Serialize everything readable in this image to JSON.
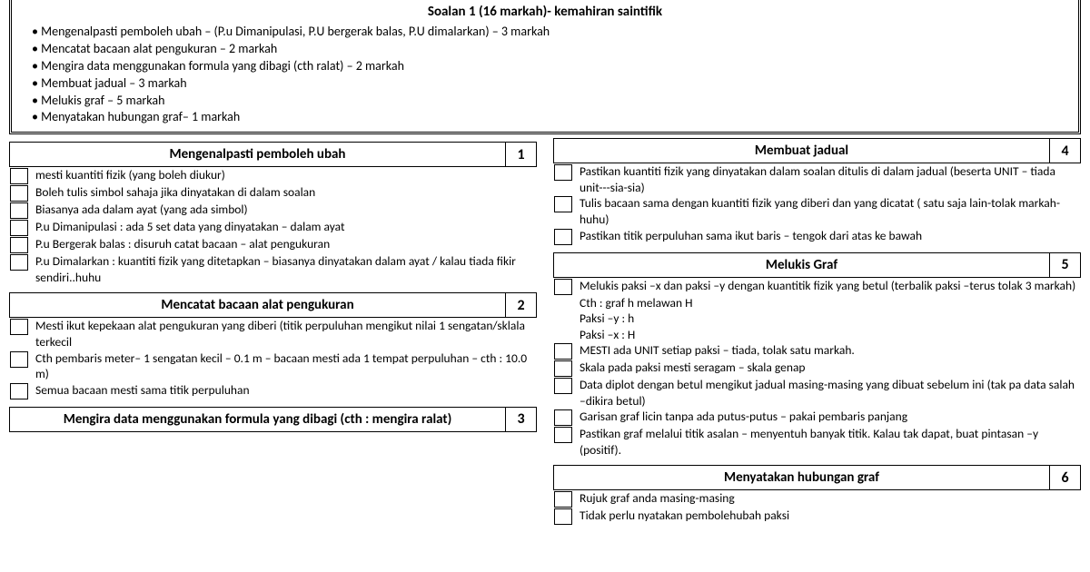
{
  "header": {
    "title": "Soalan 1 (16 markah)- kemahiran saintifik",
    "bullets": [
      "Mengenalpasti pemboleh ubah – (P.u Dimanipulasi, P.U bergerak balas, P.U dimalarkan) – 3 markah",
      " Mencatat bacaan alat pengukuran – 2 markah",
      "Mengira data menggunakan formula yang dibagi (cth ralat) – 2 markah",
      "Membuat jadual – 3 markah",
      "Melukis graf – 5 markah",
      "Menyatakan hubungan graf– 1 markah"
    ]
  },
  "sections": {
    "s1": {
      "title": "Mengenalpasti pemboleh ubah",
      "num": "1",
      "rows": [
        {
          "chk": true,
          "t": "mesti kuantiti fizik (yang boleh diukur)"
        },
        {
          "chk": true,
          "t": "Boleh tulis simbol sahaja jika dinyatakan di dalam soalan"
        },
        {
          "chk": true,
          "t": "Biasanya ada dalam ayat (yang ada simbol)"
        },
        {
          "chk": true,
          "t": "P.u Dimanipulasi : ada 5 set data yang dinyatakan – dalam ayat"
        },
        {
          "chk": true,
          "t": "P.u Bergerak balas : disuruh catat bacaan – alat pengukuran"
        },
        {
          "chk": true,
          "t": "P.u Dimalarkan : kuantiti fizik yang ditetapkan – biasanya dinyatakan dalam ayat / kalau tiada fikir sendiri..huhu"
        }
      ]
    },
    "s2": {
      "title": "Mencatat bacaan alat pengukuran",
      "num": "2",
      "rows": [
        {
          "chk": true,
          "t": "Mesti ikut kepekaan alat pengukuran yang diberi (titik perpuluhan mengikut nilai 1 sengatan/sklala terkecil"
        },
        {
          "chk": true,
          "t": "Cth pembaris meter– 1 sengatan kecil – 0.1 m – bacaan mesti ada 1 tempat perpuluhan – cth : 10.0 m)"
        },
        {
          "chk": true,
          "t": "Semua bacaan mesti sama titik perpuluhan"
        }
      ]
    },
    "s3": {
      "title": "Mengira data menggunakan formula yang dibagi (cth : mengira ralat)",
      "num": "3",
      "rows": []
    },
    "s4": {
      "title": "Membuat jadual",
      "num": "4",
      "rows": [
        {
          "chk": true,
          "t": "Pastikan kuantiti fizik yang dinyatakan dalam soalan ditulis di dalam jadual (beserta UNIT – tiada unit---sia-sia)"
        },
        {
          "chk": true,
          "t": "Tulis bacaan sama dengan kuantiti fizik yang diberi dan yang dicatat ( satu saja lain-tolak markah-huhu)"
        },
        {
          "chk": true,
          "t": "Pastikan titik perpuluhan sama ikut baris – tengok dari atas ke bawah"
        }
      ]
    },
    "s5": {
      "title": "Melukis Graf",
      "num": "5",
      "rows": [
        {
          "chk": true,
          "t": "Melukis paksi –x dan paksi –y dengan kuantitik fizik yang betul (terbalik paksi –terus tolak 3 markah)"
        },
        {
          "chk": false,
          "t": " Cth : graf h melawan H"
        },
        {
          "chk": false,
          "t": "Paksi –y : h"
        },
        {
          "chk": false,
          "t": "Paksi –x : H"
        },
        {
          "chk": true,
          "t": "MESTI ada UNIT setiap paksi – tiada, tolak satu markah."
        },
        {
          "chk": true,
          "t": "Skala pada paksi mesti seragam – skala genap"
        },
        {
          "chk": true,
          "t": "Data diplot dengan betul mengikut jadual masing-masing yang dibuat sebelum ini (tak pa data salah –dikira betul)"
        },
        {
          "chk": true,
          "t": "Garisan graf licin tanpa ada putus-putus – pakai pembaris panjang"
        },
        {
          "chk": true,
          "t": "Pastikan graf melalui titik asalan – menyentuh banyak titik. Kalau tak dapat, buat pintasan –y (positif)."
        }
      ]
    },
    "s6": {
      "title": "Menyatakan hubungan graf",
      "num": "6",
      "rows": [
        {
          "chk": true,
          "t": "Rujuk graf anda masing-masing"
        },
        {
          "chk": true,
          "t": "Tidak perlu nyatakan pembolehubah paksi"
        }
      ]
    }
  }
}
